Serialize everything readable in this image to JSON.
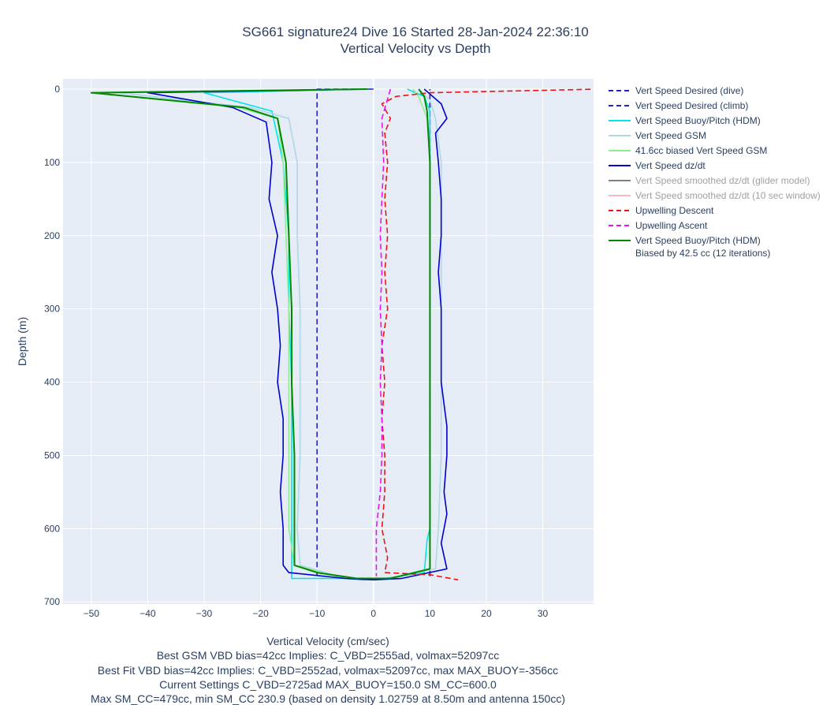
{
  "chart_data": {
    "type": "line",
    "title": "SG661 signature24 Dive 16 Started 28-Jan-2024 22:36:10",
    "subtitle": "Vertical Velocity vs Depth",
    "xlabel": "Vertical Velocity (cm/sec)",
    "ylabel": "Depth (m)",
    "xlim": [
      -55,
      39
    ],
    "ylim": [
      703,
      -14
    ],
    "y_reversed": true,
    "grid": true,
    "legend_position": "right",
    "x_ticks": [
      "−50",
      "−40",
      "−30",
      "−20",
      "−10",
      "0",
      "10",
      "20",
      "30"
    ],
    "x_tick_values": [
      -50,
      -40,
      -30,
      -20,
      -10,
      0,
      10,
      20,
      30
    ],
    "y_ticks": [
      "0",
      "100",
      "200",
      "300",
      "400",
      "500",
      "600",
      "700"
    ],
    "y_tick_values": [
      0,
      100,
      200,
      300,
      400,
      500,
      600,
      700
    ],
    "notes": [
      "Best GSM VBD bias=42cc Implies: C_VBD=2555ad, volmax=52097cc",
      "Best Fit VBD bias=42cc Implies: C_VBD=2552ad, volmax=52097cc, max MAX_BUOY=-356cc",
      "Current Settings C_VBD=2725ad MAX_BUOY=150.0 SM_CC=600.0",
      "Max SM_CC=479cc, min SM_CC 230.9 (based on density 1.02759 at 8.50m and antenna 150cc)"
    ],
    "series": [
      {
        "name": "Vert Speed Desired (dive)",
        "color": "#2222cc",
        "dash": true,
        "dim": false,
        "points": [
          [
            0,
            0
          ],
          [
            -10,
            0
          ],
          [
            -10,
            665
          ]
        ]
      },
      {
        "name": "Vert Speed Desired (climb)",
        "color": "#2222cc",
        "dash": true,
        "dim": false,
        "points": [
          [
            10,
            665
          ],
          [
            10,
            0
          ]
        ]
      },
      {
        "name": "Vert Speed Buoy/Pitch (HDM)",
        "color": "#00e5e5",
        "dash": false,
        "dim": false,
        "points": [
          [
            -2,
            0
          ],
          [
            -30,
            5
          ],
          [
            -18,
            30
          ],
          [
            -16,
            100
          ],
          [
            -15,
            200
          ],
          [
            -15,
            300
          ],
          [
            -14.5,
            400
          ],
          [
            -14.5,
            500
          ],
          [
            -14.5,
            600
          ],
          [
            -14.5,
            668
          ],
          [
            -5,
            668
          ],
          [
            -2,
            670
          ],
          [
            2,
            668
          ],
          [
            9,
            660
          ],
          [
            9.5,
            615
          ],
          [
            10,
            600
          ],
          [
            10,
            500
          ],
          [
            10,
            400
          ],
          [
            10,
            300
          ],
          [
            10,
            200
          ],
          [
            10,
            100
          ],
          [
            10,
            30
          ],
          [
            9,
            10
          ],
          [
            6,
            0
          ]
        ]
      },
      {
        "name": "Vert Speed GSM",
        "color": "#add8e6",
        "dash": false,
        "dim": false,
        "points": [
          [
            -2,
            0
          ],
          [
            -45,
            5
          ],
          [
            -22,
            25
          ],
          [
            -15,
            40
          ],
          [
            -13.5,
            100
          ],
          [
            -13.5,
            200
          ],
          [
            -13,
            300
          ],
          [
            -13,
            400
          ],
          [
            -13,
            500
          ],
          [
            -13.5,
            600
          ],
          [
            -13,
            650
          ],
          [
            -5,
            668
          ],
          [
            3,
            668
          ],
          [
            11,
            655
          ],
          [
            11.5,
            600
          ],
          [
            12,
            500
          ],
          [
            12,
            400
          ],
          [
            12,
            300
          ],
          [
            12,
            200
          ],
          [
            12,
            100
          ],
          [
            11,
            40
          ],
          [
            10,
            15
          ],
          [
            8,
            0
          ]
        ]
      },
      {
        "name": "41.6cc biased Vert Speed GSM",
        "color": "#90ee90",
        "dash": false,
        "dim": false,
        "points": [
          [
            -2,
            0
          ],
          [
            -50,
            5
          ],
          [
            -24,
            25
          ],
          [
            -17,
            40
          ],
          [
            -16,
            100
          ],
          [
            -15.5,
            200
          ],
          [
            -15,
            300
          ],
          [
            -15,
            400
          ],
          [
            -15,
            500
          ],
          [
            -15,
            600
          ],
          [
            -14,
            650
          ],
          [
            -5,
            668
          ],
          [
            3,
            668
          ],
          [
            10,
            655
          ],
          [
            10,
            600
          ],
          [
            10,
            500
          ],
          [
            10,
            400
          ],
          [
            10,
            300
          ],
          [
            10,
            200
          ],
          [
            10,
            100
          ],
          [
            9.5,
            40
          ],
          [
            8,
            10
          ],
          [
            7,
            0
          ]
        ]
      },
      {
        "name": "Vert Speed dz/dt",
        "color": "#0000cc",
        "dash": false,
        "dim": false,
        "points": [
          [
            -1,
            0
          ],
          [
            -40,
            5
          ],
          [
            -25,
            25
          ],
          [
            -19,
            45
          ],
          [
            -18,
            100
          ],
          [
            -18.5,
            150
          ],
          [
            -17,
            200
          ],
          [
            -18,
            250
          ],
          [
            -17,
            300
          ],
          [
            -16.5,
            350
          ],
          [
            -17,
            400
          ],
          [
            -16,
            450
          ],
          [
            -16,
            500
          ],
          [
            -16.5,
            550
          ],
          [
            -16,
            600
          ],
          [
            -16,
            650
          ],
          [
            -15,
            660
          ],
          [
            -5,
            668
          ],
          [
            0,
            670
          ],
          [
            5,
            668
          ],
          [
            13,
            655
          ],
          [
            12,
            620
          ],
          [
            13,
            580
          ],
          [
            12.5,
            550
          ],
          [
            13,
            500
          ],
          [
            13,
            460
          ],
          [
            12,
            400
          ],
          [
            12,
            350
          ],
          [
            12,
            300
          ],
          [
            11.5,
            250
          ],
          [
            12,
            200
          ],
          [
            12,
            150
          ],
          [
            11.5,
            100
          ],
          [
            11,
            60
          ],
          [
            13,
            40
          ],
          [
            12,
            20
          ],
          [
            9,
            0
          ]
        ]
      },
      {
        "name": "Vert Speed smoothed dz/dt (glider model)",
        "color": "#808080",
        "dash": false,
        "dim": true,
        "points": []
      },
      {
        "name": "Vert Speed smoothed dz/dt (10 sec window)",
        "color": "#ffb6c1",
        "dash": false,
        "dim": true,
        "points": []
      },
      {
        "name": "Upwelling Descent",
        "color": "#ee1111",
        "dash": true,
        "dim": false,
        "points": [
          [
            40,
            0
          ],
          [
            10,
            5
          ],
          [
            4,
            10
          ],
          [
            1.5,
            20
          ],
          [
            3,
            40
          ],
          [
            2,
            60
          ],
          [
            2.5,
            100
          ],
          [
            2,
            150
          ],
          [
            2.5,
            200
          ],
          [
            2,
            250
          ],
          [
            2.5,
            300
          ],
          [
            1.5,
            350
          ],
          [
            2,
            400
          ],
          [
            1.5,
            450
          ],
          [
            2,
            500
          ],
          [
            2,
            550
          ],
          [
            1.5,
            600
          ],
          [
            2.5,
            640
          ],
          [
            2,
            660
          ],
          [
            10,
            663
          ],
          [
            15,
            670
          ]
        ]
      },
      {
        "name": "Upwelling Ascent",
        "color": "#ee11ee",
        "dash": true,
        "dim": false,
        "points": [
          [
            3,
            0
          ],
          [
            1.5,
            40
          ],
          [
            1.8,
            100
          ],
          [
            1.5,
            150
          ],
          [
            1.2,
            200
          ],
          [
            1.5,
            250
          ],
          [
            1.2,
            300
          ],
          [
            1.5,
            350
          ],
          [
            1.2,
            400
          ],
          [
            1.5,
            450
          ],
          [
            1.5,
            500
          ],
          [
            1.2,
            550
          ],
          [
            0.5,
            600
          ],
          [
            0.5,
            665
          ]
        ]
      },
      {
        "name": "Vert Speed Buoy/Pitch (HDM)",
        "name2": "Biased by 42.5 cc (12 iterations)",
        "color": "#008800",
        "dash": false,
        "dim": false,
        "thick": true,
        "points": [
          [
            -1,
            0
          ],
          [
            -50,
            5
          ],
          [
            -23,
            25
          ],
          [
            -17,
            40
          ],
          [
            -15.5,
            100
          ],
          [
            -15,
            200
          ],
          [
            -14.5,
            300
          ],
          [
            -14.5,
            400
          ],
          [
            -14,
            500
          ],
          [
            -14,
            600
          ],
          [
            -14,
            650
          ],
          [
            -10,
            660
          ],
          [
            -3,
            668
          ],
          [
            3,
            668
          ],
          [
            10,
            655
          ],
          [
            10,
            600
          ],
          [
            10,
            500
          ],
          [
            10,
            400
          ],
          [
            10,
            300
          ],
          [
            10,
            200
          ],
          [
            10,
            100
          ],
          [
            9.5,
            30
          ],
          [
            9,
            10
          ],
          [
            8,
            0
          ]
        ]
      }
    ]
  }
}
